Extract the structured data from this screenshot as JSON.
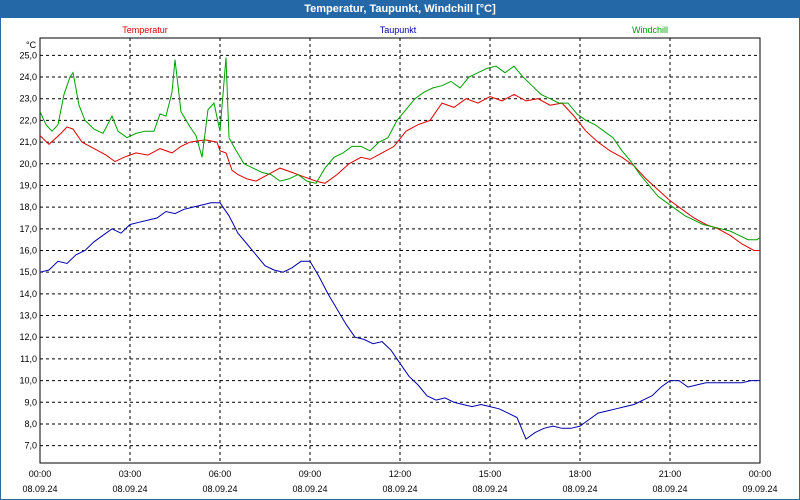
{
  "window": {
    "title": "Temperatur, Taupunkt, Windchill [°C]"
  },
  "chart_data": {
    "type": "line",
    "title": "Temperatur, Taupunkt, Windchill [°C]",
    "ylabel": "°C",
    "ylim": [
      6.2,
      25.8
    ],
    "xlim": [
      0,
      24
    ],
    "yticks": [
      "7,0",
      "8,0",
      "9,0",
      "10,0",
      "11,0",
      "12,0",
      "13,0",
      "14,0",
      "15,0",
      "16,0",
      "17,0",
      "18,0",
      "19,0",
      "20,0",
      "21,0",
      "22,0",
      "23,0",
      "24,0",
      "25,0"
    ],
    "ytick_values": [
      7,
      8,
      9,
      10,
      11,
      12,
      13,
      14,
      15,
      16,
      17,
      18,
      19,
      20,
      21,
      22,
      23,
      24,
      25
    ],
    "xticks": [
      {
        "time": "00:00",
        "date": "08.09.24",
        "h": 0
      },
      {
        "time": "03:00",
        "date": "08.09.24",
        "h": 3
      },
      {
        "time": "06:00",
        "date": "08.09.24",
        "h": 6
      },
      {
        "time": "09:00",
        "date": "08.09.24",
        "h": 9
      },
      {
        "time": "12:00",
        "date": "08.09.24",
        "h": 12
      },
      {
        "time": "15:00",
        "date": "08.09.24",
        "h": 15
      },
      {
        "time": "18:00",
        "date": "08.09.24",
        "h": 18
      },
      {
        "time": "21:00",
        "date": "08.09.24",
        "h": 21
      },
      {
        "time": "00:00",
        "date": "09.09.24",
        "h": 24
      }
    ],
    "grid": true,
    "legend_position": "top",
    "series": [
      {
        "name": "Temperatur",
        "color": "#e00000",
        "points": [
          [
            0,
            21.3
          ],
          [
            0.3,
            20.9
          ],
          [
            0.7,
            21.4
          ],
          [
            0.9,
            21.7
          ],
          [
            1.1,
            21.6
          ],
          [
            1.4,
            21.0
          ],
          [
            1.8,
            20.7
          ],
          [
            2.2,
            20.4
          ],
          [
            2.5,
            20.1
          ],
          [
            2.8,
            20.3
          ],
          [
            3.2,
            20.5
          ],
          [
            3.6,
            20.4
          ],
          [
            4.0,
            20.7
          ],
          [
            4.4,
            20.5
          ],
          [
            4.7,
            20.8
          ],
          [
            5.0,
            21.0
          ],
          [
            5.5,
            21.1
          ],
          [
            5.9,
            21.0
          ],
          [
            6.0,
            20.6
          ],
          [
            6.2,
            20.5
          ],
          [
            6.4,
            19.7
          ],
          [
            6.6,
            19.5
          ],
          [
            6.9,
            19.3
          ],
          [
            7.2,
            19.2
          ],
          [
            7.6,
            19.5
          ],
          [
            8.0,
            19.8
          ],
          [
            8.4,
            19.6
          ],
          [
            8.8,
            19.4
          ],
          [
            9.2,
            19.2
          ],
          [
            9.5,
            19.1
          ],
          [
            9.9,
            19.5
          ],
          [
            10.3,
            20.0
          ],
          [
            10.7,
            20.3
          ],
          [
            11.0,
            20.2
          ],
          [
            11.4,
            20.5
          ],
          [
            11.8,
            20.8
          ],
          [
            12.2,
            21.5
          ],
          [
            12.6,
            21.8
          ],
          [
            13.0,
            22.0
          ],
          [
            13.4,
            22.8
          ],
          [
            13.8,
            22.6
          ],
          [
            14.2,
            23.0
          ],
          [
            14.6,
            22.8
          ],
          [
            15.0,
            23.1
          ],
          [
            15.4,
            22.9
          ],
          [
            15.8,
            23.2
          ],
          [
            16.2,
            22.9
          ],
          [
            16.6,
            23.0
          ],
          [
            17.0,
            22.7
          ],
          [
            17.4,
            22.8
          ],
          [
            17.8,
            22.2
          ],
          [
            18.2,
            21.5
          ],
          [
            18.6,
            21.0
          ],
          [
            19.0,
            20.6
          ],
          [
            19.4,
            20.3
          ],
          [
            19.8,
            19.9
          ],
          [
            20.2,
            19.3
          ],
          [
            20.6,
            18.8
          ],
          [
            21.0,
            18.3
          ],
          [
            21.4,
            17.9
          ],
          [
            21.8,
            17.5
          ],
          [
            22.2,
            17.2
          ],
          [
            22.6,
            17.0
          ],
          [
            23.0,
            16.7
          ],
          [
            23.4,
            16.3
          ],
          [
            23.8,
            16.0
          ],
          [
            24.0,
            16.0
          ]
        ]
      },
      {
        "name": "Taupunkt",
        "color": "#0000b0",
        "points": [
          [
            0,
            15.0
          ],
          [
            0.3,
            15.1
          ],
          [
            0.6,
            15.5
          ],
          [
            0.9,
            15.4
          ],
          [
            1.2,
            15.8
          ],
          [
            1.5,
            16.0
          ],
          [
            1.8,
            16.4
          ],
          [
            2.1,
            16.7
          ],
          [
            2.4,
            17.0
          ],
          [
            2.7,
            16.8
          ],
          [
            3.0,
            17.2
          ],
          [
            3.3,
            17.3
          ],
          [
            3.6,
            17.4
          ],
          [
            3.9,
            17.5
          ],
          [
            4.2,
            17.8
          ],
          [
            4.5,
            17.7
          ],
          [
            4.8,
            17.9
          ],
          [
            5.1,
            18.0
          ],
          [
            5.4,
            18.1
          ],
          [
            5.7,
            18.2
          ],
          [
            6.0,
            18.2
          ],
          [
            6.3,
            17.6
          ],
          [
            6.6,
            16.8
          ],
          [
            6.9,
            16.3
          ],
          [
            7.2,
            15.8
          ],
          [
            7.5,
            15.3
          ],
          [
            7.8,
            15.1
          ],
          [
            8.1,
            15.0
          ],
          [
            8.4,
            15.2
          ],
          [
            8.7,
            15.5
          ],
          [
            9.0,
            15.5
          ],
          [
            9.3,
            14.8
          ],
          [
            9.6,
            14.0
          ],
          [
            9.9,
            13.3
          ],
          [
            10.2,
            12.6
          ],
          [
            10.5,
            12.0
          ],
          [
            10.8,
            11.9
          ],
          [
            11.1,
            11.7
          ],
          [
            11.4,
            11.8
          ],
          [
            11.7,
            11.4
          ],
          [
            12.0,
            10.8
          ],
          [
            12.3,
            10.2
          ],
          [
            12.6,
            9.8
          ],
          [
            12.9,
            9.3
          ],
          [
            13.2,
            9.1
          ],
          [
            13.5,
            9.2
          ],
          [
            13.8,
            9.0
          ],
          [
            14.1,
            8.9
          ],
          [
            14.4,
            8.8
          ],
          [
            14.7,
            8.9
          ],
          [
            15.0,
            8.8
          ],
          [
            15.3,
            8.7
          ],
          [
            15.6,
            8.5
          ],
          [
            15.9,
            8.3
          ],
          [
            16.2,
            7.3
          ],
          [
            16.5,
            7.6
          ],
          [
            16.8,
            7.8
          ],
          [
            17.1,
            7.9
          ],
          [
            17.4,
            7.8
          ],
          [
            17.7,
            7.8
          ],
          [
            18.0,
            7.9
          ],
          [
            18.3,
            8.2
          ],
          [
            18.6,
            8.5
          ],
          [
            18.9,
            8.6
          ],
          [
            19.2,
            8.7
          ],
          [
            19.5,
            8.8
          ],
          [
            19.8,
            8.9
          ],
          [
            20.1,
            9.1
          ],
          [
            20.4,
            9.3
          ],
          [
            20.7,
            9.7
          ],
          [
            21.0,
            10.0
          ],
          [
            21.3,
            10.0
          ],
          [
            21.6,
            9.7
          ],
          [
            21.9,
            9.8
          ],
          [
            22.2,
            9.9
          ],
          [
            22.5,
            9.9
          ],
          [
            22.8,
            9.9
          ],
          [
            23.1,
            9.9
          ],
          [
            23.4,
            9.9
          ],
          [
            23.7,
            10.0
          ],
          [
            24.0,
            10.0
          ]
        ]
      },
      {
        "name": "Windchill",
        "color": "#00a000",
        "points": [
          [
            0,
            22.4
          ],
          [
            0.2,
            21.8
          ],
          [
            0.4,
            21.5
          ],
          [
            0.6,
            21.8
          ],
          [
            0.8,
            23.2
          ],
          [
            1.0,
            24.0
          ],
          [
            1.1,
            24.2
          ],
          [
            1.3,
            22.7
          ],
          [
            1.5,
            22.0
          ],
          [
            1.8,
            21.6
          ],
          [
            2.1,
            21.4
          ],
          [
            2.4,
            22.2
          ],
          [
            2.6,
            21.5
          ],
          [
            2.9,
            21.2
          ],
          [
            3.2,
            21.4
          ],
          [
            3.5,
            21.5
          ],
          [
            3.8,
            21.5
          ],
          [
            4.0,
            22.3
          ],
          [
            4.2,
            22.2
          ],
          [
            4.4,
            23.3
          ],
          [
            4.5,
            24.8
          ],
          [
            4.6,
            23.6
          ],
          [
            4.7,
            22.4
          ],
          [
            5.0,
            21.7
          ],
          [
            5.2,
            21.3
          ],
          [
            5.4,
            20.3
          ],
          [
            5.6,
            22.5
          ],
          [
            5.8,
            22.8
          ],
          [
            6.0,
            21.5
          ],
          [
            6.2,
            24.9
          ],
          [
            6.3,
            21.2
          ],
          [
            6.5,
            20.7
          ],
          [
            6.8,
            20.0
          ],
          [
            7.1,
            19.8
          ],
          [
            7.4,
            19.6
          ],
          [
            7.7,
            19.5
          ],
          [
            8.0,
            19.2
          ],
          [
            8.3,
            19.3
          ],
          [
            8.6,
            19.5
          ],
          [
            8.9,
            19.2
          ],
          [
            9.2,
            19.1
          ],
          [
            9.5,
            19.8
          ],
          [
            9.8,
            20.3
          ],
          [
            10.1,
            20.5
          ],
          [
            10.4,
            20.8
          ],
          [
            10.7,
            20.8
          ],
          [
            11.0,
            20.6
          ],
          [
            11.3,
            21.0
          ],
          [
            11.6,
            21.2
          ],
          [
            11.9,
            22.0
          ],
          [
            12.2,
            22.5
          ],
          [
            12.5,
            23.0
          ],
          [
            12.8,
            23.3
          ],
          [
            13.1,
            23.5
          ],
          [
            13.4,
            23.6
          ],
          [
            13.7,
            23.8
          ],
          [
            14.0,
            23.5
          ],
          [
            14.3,
            24.0
          ],
          [
            14.6,
            24.2
          ],
          [
            14.9,
            24.4
          ],
          [
            15.2,
            24.5
          ],
          [
            15.5,
            24.2
          ],
          [
            15.8,
            24.5
          ],
          [
            16.1,
            24.0
          ],
          [
            16.4,
            23.6
          ],
          [
            16.7,
            23.2
          ],
          [
            17.0,
            23.0
          ],
          [
            17.3,
            22.8
          ],
          [
            17.6,
            22.8
          ],
          [
            17.9,
            22.3
          ],
          [
            18.2,
            22.0
          ],
          [
            18.5,
            21.8
          ],
          [
            18.8,
            21.5
          ],
          [
            19.1,
            21.2
          ],
          [
            19.4,
            20.6
          ],
          [
            19.7,
            20.1
          ],
          [
            20.0,
            19.5
          ],
          [
            20.3,
            19.0
          ],
          [
            20.6,
            18.5
          ],
          [
            20.9,
            18.2
          ],
          [
            21.2,
            17.9
          ],
          [
            21.5,
            17.6
          ],
          [
            21.8,
            17.4
          ],
          [
            22.1,
            17.2
          ],
          [
            22.4,
            17.1
          ],
          [
            22.7,
            17.0
          ],
          [
            23.0,
            16.9
          ],
          [
            23.3,
            16.7
          ],
          [
            23.6,
            16.5
          ],
          [
            23.9,
            16.5
          ],
          [
            24.0,
            16.6
          ]
        ]
      }
    ]
  }
}
